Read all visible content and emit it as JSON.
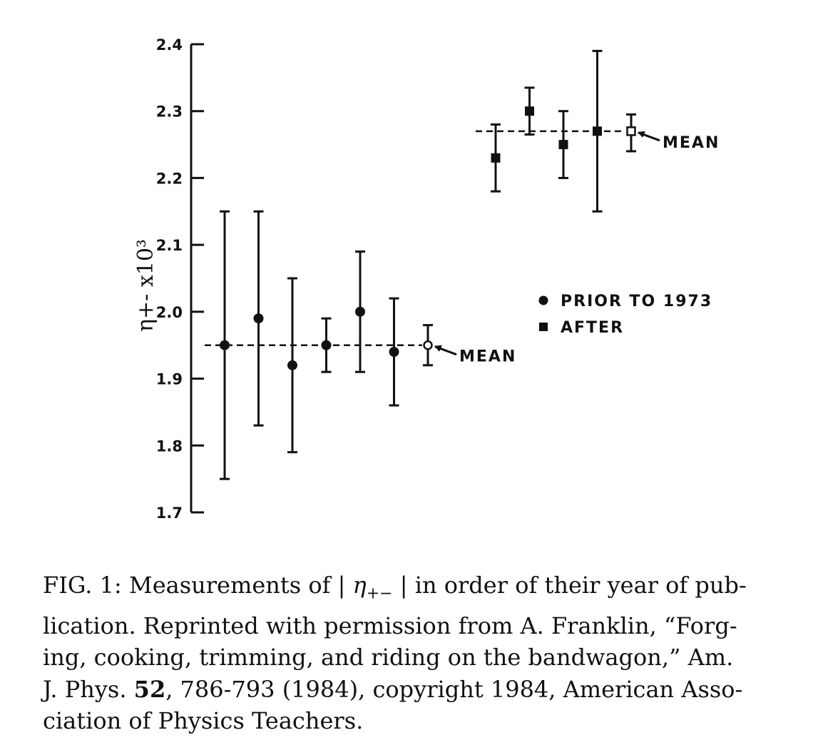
{
  "chart_data": {
    "type": "scatter",
    "ylabel": "η+- x10³",
    "ylim": [
      1.7,
      2.4
    ],
    "yticks": [
      "1.7",
      "1.8",
      "1.9",
      "2.0",
      "2.1",
      "2.2",
      "2.3",
      "2.4"
    ],
    "series": [
      {
        "name": "PRIOR TO 1973",
        "marker": "circle",
        "points": [
          {
            "index": 1,
            "y": 1.95,
            "low": 1.75,
            "high": 2.15
          },
          {
            "index": 2,
            "y": 1.99,
            "low": 1.83,
            "high": 2.15
          },
          {
            "index": 3,
            "y": 1.92,
            "low": 1.79,
            "high": 2.05
          },
          {
            "index": 4,
            "y": 1.95,
            "low": 1.91,
            "high": 1.99
          },
          {
            "index": 5,
            "y": 2.0,
            "low": 1.91,
            "high": 2.09
          },
          {
            "index": 6,
            "y": 1.94,
            "low": 1.86,
            "high": 2.02
          }
        ],
        "mean": {
          "index": 7,
          "y": 1.95,
          "low": 1.92,
          "high": 1.98,
          "label": "MEAN"
        }
      },
      {
        "name": "AFTER",
        "marker": "square",
        "points": [
          {
            "index": 9,
            "y": 2.23,
            "low": 2.18,
            "high": 2.28
          },
          {
            "index": 10,
            "y": 2.3,
            "low": 2.265,
            "high": 2.335
          },
          {
            "index": 11,
            "y": 2.25,
            "low": 2.2,
            "high": 2.3
          },
          {
            "index": 12,
            "y": 2.27,
            "low": 2.15,
            "high": 2.39
          }
        ],
        "mean": {
          "index": 13,
          "y": 2.27,
          "low": 2.24,
          "high": 2.295,
          "label": "MEAN"
        }
      }
    ],
    "legend": [
      "PRIOR TO 1973",
      "AFTER"
    ],
    "legend_position": "right"
  },
  "caption": {
    "line1_prefix": "FIG. 1: Measurements of | ",
    "line1_symbol": "η",
    "line1_subscript": "+−",
    "line1_suffix": " | in order of their year of pub-",
    "line2": "lication. Reprinted with permission from A. Franklin, “Forg-",
    "line3": "ing, cooking, trimming, and riding on the bandwagon,” Am.",
    "line4_prefix": "J. Phys. ",
    "line4_bold": "52",
    "line4_suffix": ", 786-793 (1984), copyright 1984, American Asso-",
    "line5": "ciation of Physics Teachers."
  }
}
